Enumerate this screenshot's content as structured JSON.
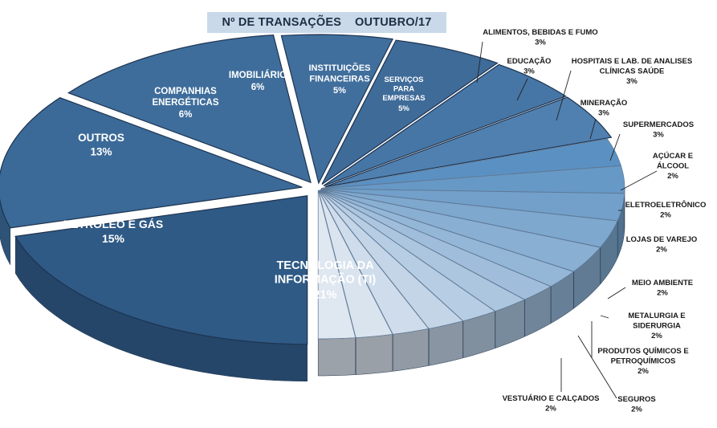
{
  "chart_data": {
    "type": "pie",
    "title": "Nº DE TRANSAÇÕES    OUTUBRO/17",
    "slices": [
      {
        "label": "TECNOLOGIA DA INFORMAÇÃO (TI)",
        "value": 21,
        "value_label": "21%"
      },
      {
        "label": "PETRÓLEO E GÁS",
        "value": 15,
        "value_label": "15%"
      },
      {
        "label": "OUTROS",
        "value": 13,
        "value_label": "13%"
      },
      {
        "label": "COMPANHIAS ENERGÉTICAS",
        "value": 6,
        "value_label": "6%"
      },
      {
        "label": "IMOBILIÁRIO",
        "value": 6,
        "value_label": "6%"
      },
      {
        "label": "INSTITUIÇÕES FINANCEIRAS",
        "value": 5,
        "value_label": "5%"
      },
      {
        "label": "SERVIÇOS PARA EMPRESAS",
        "value": 5,
        "value_label": "5%"
      },
      {
        "label": "ALIMENTOS, BEBIDAS E FUMO",
        "value": 3,
        "value_label": "3%"
      },
      {
        "label": "EDUCAÇÃO",
        "value": 3,
        "value_label": "3%"
      },
      {
        "label": "HOSPITAIS E LAB. DE ANALISES CLÍNICAS SAÚDE",
        "value": 3,
        "value_label": "3%"
      },
      {
        "label": "MINERAÇÃO",
        "value": 3,
        "value_label": "3%"
      },
      {
        "label": "SUPERMERCADOS",
        "value": 3,
        "value_label": "3%"
      },
      {
        "label": "AÇÚCAR E ÁLCOOL",
        "value": 2,
        "value_label": "2%"
      },
      {
        "label": "ELETROELETRÔNICO",
        "value": 2,
        "value_label": "2%"
      },
      {
        "label": "LOJAS DE VAREJO",
        "value": 2,
        "value_label": "2%"
      },
      {
        "label": "MEIO AMBIENTE",
        "value": 2,
        "value_label": "2%"
      },
      {
        "label": "METALURGIA E SIDERURGIA",
        "value": 2,
        "value_label": "2%"
      },
      {
        "label": "PRODUTOS QUÍMICOS E PETROQUÍMICOS",
        "value": 2,
        "value_label": "2%"
      },
      {
        "label": "SEGUROS",
        "value": 2,
        "value_label": "2%"
      },
      {
        "label": "VESTUÁRIO E CALÇADOS",
        "value": 2,
        "value_label": "2%"
      }
    ],
    "legend": "none",
    "style": "3d-exploded",
    "colors": {
      "main": "#3a6a98",
      "dark": "#243f61",
      "light": "#dfe7f1",
      "title_bg": "#c9d9ea",
      "title_text": "#1e2f45"
    }
  }
}
